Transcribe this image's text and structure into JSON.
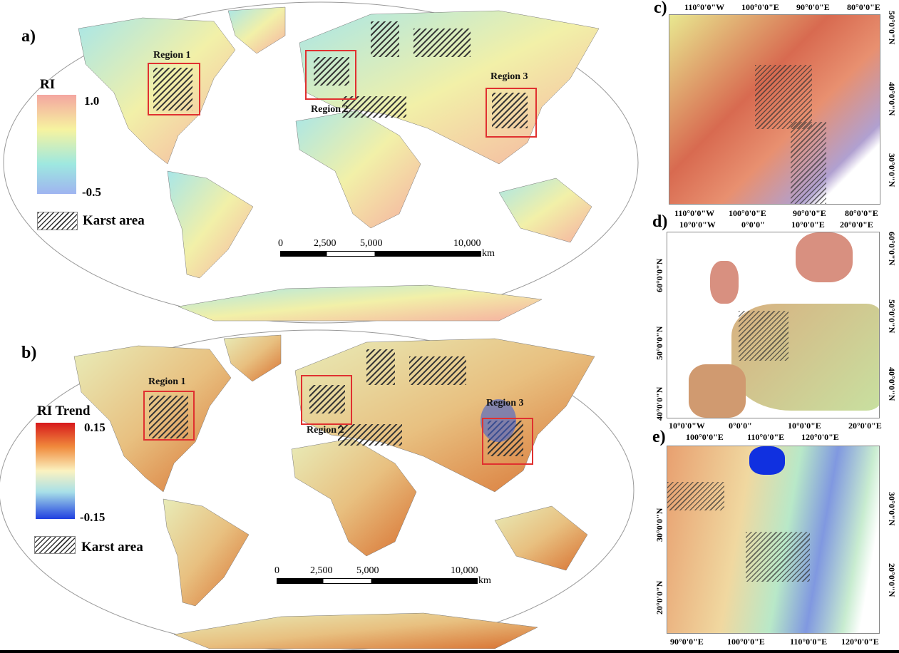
{
  "panels": {
    "a": {
      "label": "a)",
      "legend_title": "RI",
      "max": "1.0",
      "min": "-0.5",
      "karst": "Karst area",
      "colors": [
        "#f4a6a0",
        "#f6f3a0",
        "#9ee8e0",
        "#9fb4f0"
      ],
      "regions": [
        "Region 1",
        "Region 2",
        "Region 3"
      ],
      "scale": {
        "ticks": [
          "0",
          "2,500",
          "5,000",
          "10,000"
        ],
        "unit": "km"
      }
    },
    "b": {
      "label": "b)",
      "legend_title": "RI Trend",
      "max": "0.15",
      "min": "-0.15",
      "karst": "Karst area",
      "colors": [
        "#d7191c",
        "#f08a3c",
        "#fbf2c0",
        "#a8e0e8",
        "#2040e0"
      ],
      "regions": [
        "Region 1",
        "Region 2",
        "Region 3"
      ],
      "scale": {
        "ticks": [
          "0",
          "2,500",
          "5,000",
          "10,000"
        ],
        "unit": "km"
      }
    },
    "c": {
      "label": "c)",
      "top": [
        "110°0'0\"W",
        "100°0'0\"E",
        "90°0'0\"E",
        "80°0'0\"E"
      ],
      "bottom": [
        "110°0'0\"W",
        "100°0'0\"E",
        "90°0'0\"E",
        "80°0'0\"E"
      ],
      "lat": [
        "50°0'0\"N",
        "40°0'0\"N",
        "30°0'0\"N"
      ]
    },
    "d": {
      "label": "d)",
      "top": [
        "10°0'0\"W",
        "0°0'0\"",
        "10°0'0\"E",
        "20°0'0\"E"
      ],
      "bottom": [
        "10°0'0\"W",
        "0°0'0\"",
        "10°0'0\"E",
        "20°0'0\"E"
      ],
      "lat": [
        "60°0'0\"N",
        "50°0'0\"N",
        "40°0'0\"N"
      ]
    },
    "e": {
      "label": "e)",
      "top": [
        "100°0'0\"E",
        "110°0'0\"E",
        "120°0'0\"E"
      ],
      "bottom": [
        "90°0'0\"E",
        "100°0'0\"E",
        "110°0'0\"E",
        "120°0'0\"E"
      ],
      "lat": [
        "30°0'0\"N",
        "20°0'0\"N"
      ]
    }
  }
}
